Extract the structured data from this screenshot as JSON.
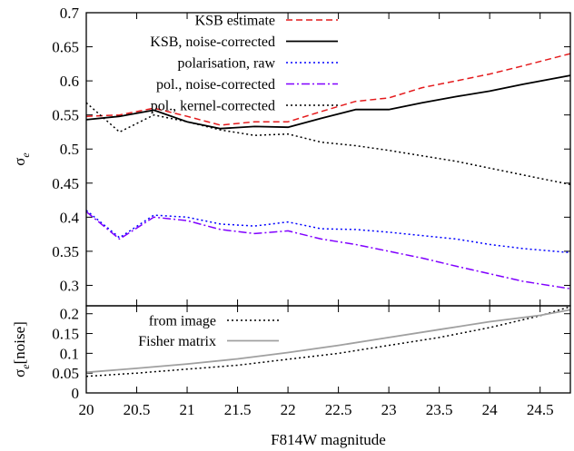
{
  "chart_data": [
    {
      "type": "line",
      "xlim": [
        20,
        24.8
      ],
      "ylim": [
        0.27,
        0.7
      ],
      "ylabel": {
        "base": "σ",
        "sub": "e"
      },
      "xticks": [
        "20",
        "20.5",
        "21",
        "21.5",
        "22",
        "22.5",
        "23",
        "23.5",
        "24",
        "24.5"
      ],
      "yticks": [
        "0.3",
        "0.35",
        "0.4",
        "0.45",
        "0.5",
        "0.55",
        "0.6",
        "0.65",
        "0.7"
      ],
      "legend_position": "top-right",
      "series": [
        {
          "name": "KSB estimate",
          "color": "#e41a1c",
          "style": "dashed",
          "x": [
            20,
            20.33,
            20.67,
            21,
            21.33,
            21.67,
            22,
            22.33,
            22.67,
            23,
            23.33,
            23.67,
            24,
            24.33,
            24.8
          ],
          "y": [
            0.548,
            0.55,
            0.56,
            0.548,
            0.535,
            0.54,
            0.54,
            0.555,
            0.57,
            0.575,
            0.59,
            0.6,
            0.61,
            0.622,
            0.64
          ]
        },
        {
          "name": "KSB, noise-corrected",
          "color": "#000000",
          "style": "solid",
          "x": [
            20,
            20.33,
            20.67,
            21,
            21.33,
            21.67,
            22,
            22.33,
            22.67,
            23,
            23.33,
            23.67,
            24,
            24.33,
            24.8
          ],
          "y": [
            0.543,
            0.548,
            0.557,
            0.54,
            0.53,
            0.533,
            0.532,
            0.545,
            0.558,
            0.558,
            0.568,
            0.577,
            0.585,
            0.595,
            0.608
          ]
        },
        {
          "name": "polarisation, raw",
          "color": "#0000ff",
          "style": "dotted",
          "x": [
            20,
            20.33,
            20.67,
            21,
            21.33,
            21.67,
            22,
            22.33,
            22.67,
            23,
            23.33,
            23.67,
            24,
            24.33,
            24.8
          ],
          "y": [
            0.41,
            0.37,
            0.403,
            0.4,
            0.39,
            0.387,
            0.393,
            0.383,
            0.382,
            0.378,
            0.373,
            0.368,
            0.36,
            0.354,
            0.348
          ]
        },
        {
          "name": "pol., noise-corrected",
          "color": "#8000ff",
          "style": "dashdot",
          "x": [
            20,
            20.33,
            20.67,
            21,
            21.33,
            21.67,
            22,
            22.33,
            22.67,
            23,
            23.33,
            23.67,
            24,
            24.33,
            24.8
          ],
          "y": [
            0.408,
            0.368,
            0.4,
            0.395,
            0.382,
            0.376,
            0.38,
            0.368,
            0.36,
            0.35,
            0.34,
            0.328,
            0.317,
            0.306,
            0.295
          ]
        },
        {
          "name": "pol., kernel-corrected",
          "color": "#000000",
          "style": "dotted",
          "x": [
            20,
            20.33,
            20.67,
            21,
            21.33,
            21.67,
            22,
            22.33,
            22.67,
            23,
            23.33,
            23.67,
            24,
            24.33,
            24.8
          ],
          "y": [
            0.568,
            0.525,
            0.55,
            0.54,
            0.528,
            0.52,
            0.522,
            0.51,
            0.505,
            0.498,
            0.49,
            0.482,
            0.472,
            0.462,
            0.448
          ]
        }
      ]
    },
    {
      "type": "line",
      "xlim": [
        20,
        24.8
      ],
      "ylim": [
        0,
        0.22
      ],
      "xlabel": "F814W magnitude",
      "ylabel": {
        "base": "σ",
        "sub": "e",
        "suffix": "[noise]"
      },
      "xticks": [
        "20",
        "20.5",
        "21",
        "21.5",
        "22",
        "22.5",
        "23",
        "23.5",
        "24",
        "24.5"
      ],
      "yticks": [
        "0",
        "0.05",
        "0.1",
        "0.15",
        "0.2"
      ],
      "legend_position": "top-left",
      "series": [
        {
          "name": "from image",
          "color": "#000000",
          "style": "dotted",
          "x": [
            20,
            20.5,
            21,
            21.5,
            22,
            22.5,
            23,
            23.5,
            24,
            24.5,
            24.8
          ],
          "y": [
            0.042,
            0.05,
            0.06,
            0.07,
            0.085,
            0.1,
            0.12,
            0.14,
            0.165,
            0.195,
            0.218
          ]
        },
        {
          "name": "Fisher matrix",
          "color": "#a0a0a0",
          "style": "solid",
          "x": [
            20,
            20.5,
            21,
            21.5,
            22,
            22.5,
            23,
            23.5,
            24,
            24.5,
            24.8
          ],
          "y": [
            0.052,
            0.062,
            0.073,
            0.086,
            0.102,
            0.12,
            0.14,
            0.16,
            0.18,
            0.196,
            0.21
          ]
        }
      ]
    }
  ]
}
